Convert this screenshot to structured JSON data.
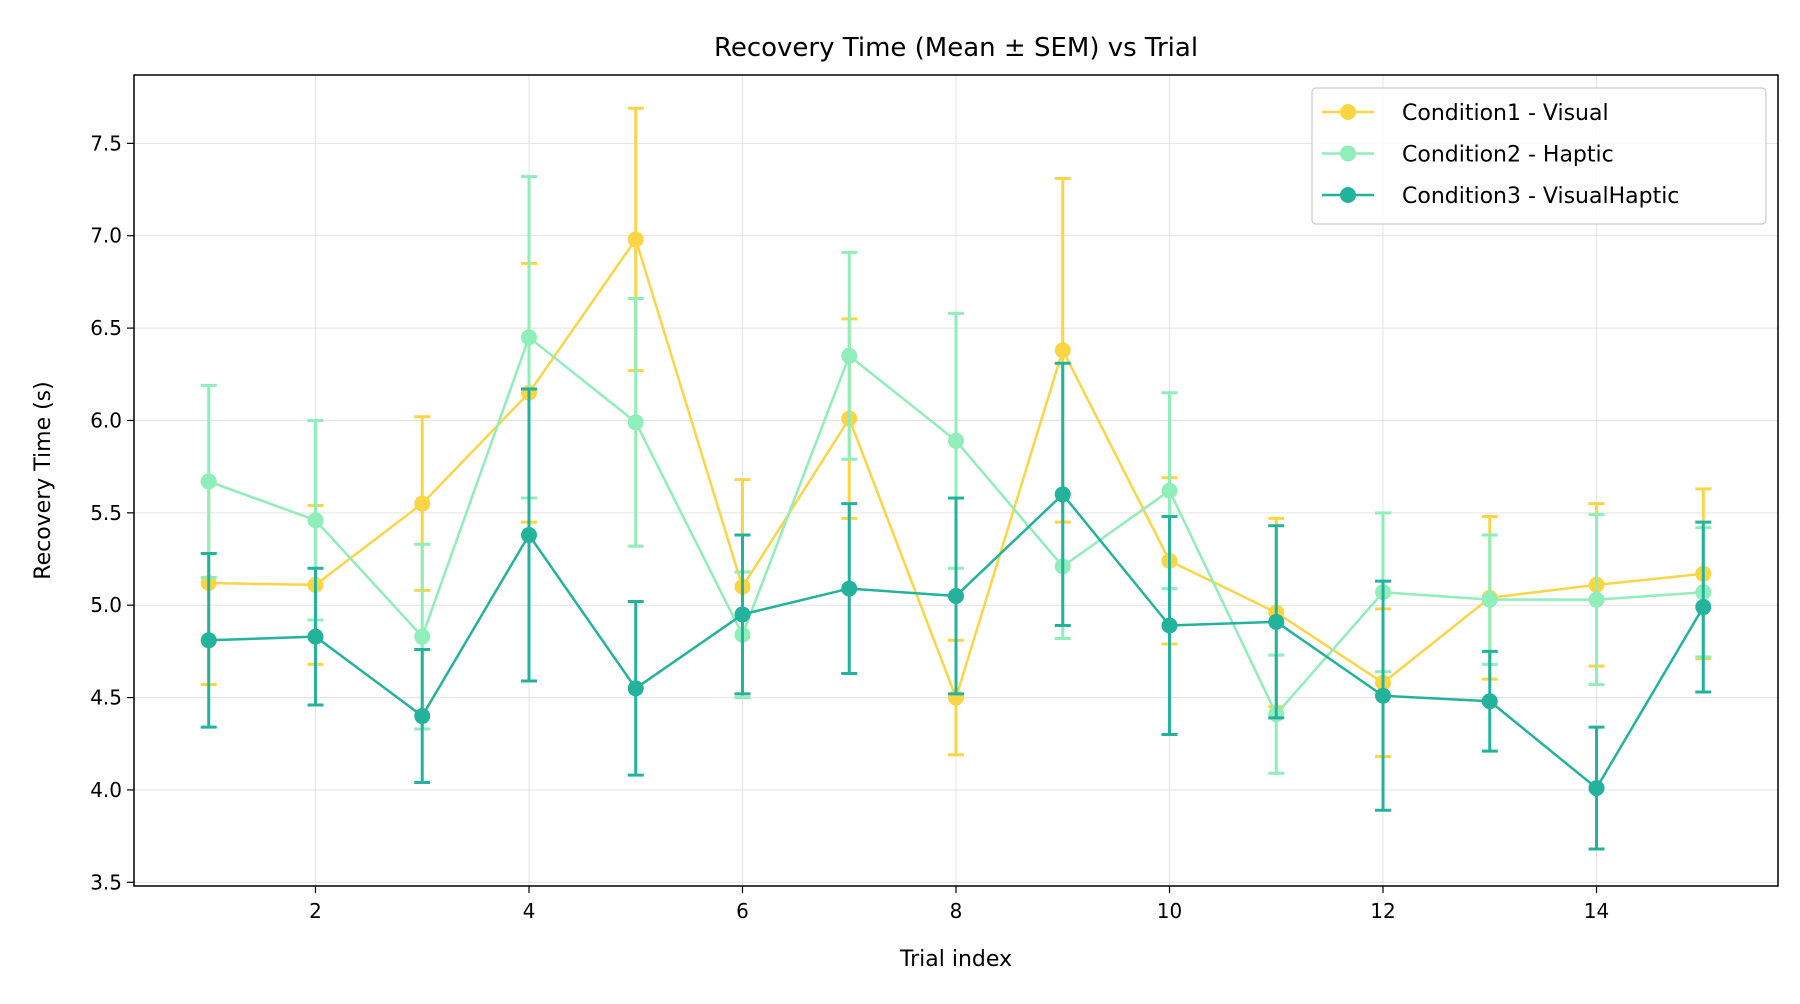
{
  "chart_data": {
    "type": "line",
    "title": "Recovery Time (Mean ± SEM) vs Trial",
    "xlabel": "Trial index",
    "ylabel": "Recovery Time (s)",
    "xlim": [
      0.3,
      15.7
    ],
    "ylim": [
      3.48,
      7.87
    ],
    "xticks": [
      2,
      4,
      6,
      8,
      10,
      12,
      14
    ],
    "yticks": [
      3.5,
      4.0,
      4.5,
      5.0,
      5.5,
      6.0,
      6.5,
      7.0,
      7.5
    ],
    "grid": true,
    "legend_position": "top-right",
    "x": [
      1,
      2,
      3,
      4,
      5,
      6,
      7,
      8,
      9,
      10,
      11,
      12,
      13,
      14,
      15
    ],
    "series": [
      {
        "name": "Condition1 - Visual",
        "color": "#fcd545",
        "values": [
          5.12,
          5.11,
          5.55,
          6.15,
          6.98,
          5.1,
          6.01,
          4.5,
          6.38,
          5.24,
          4.96,
          4.58,
          5.04,
          5.11,
          5.17
        ],
        "errors": [
          0.55,
          0.43,
          0.47,
          0.7,
          0.71,
          0.58,
          0.54,
          0.31,
          0.93,
          0.45,
          0.51,
          0.4,
          0.44,
          0.44,
          0.46
        ]
      },
      {
        "name": "Condition2 - Haptic",
        "color": "#8feeb9",
        "values": [
          5.67,
          5.46,
          4.83,
          6.45,
          5.99,
          4.84,
          6.35,
          5.89,
          5.21,
          5.62,
          4.41,
          5.07,
          5.03,
          5.03,
          5.07
        ],
        "errors": [
          0.52,
          0.54,
          0.5,
          0.87,
          0.67,
          0.34,
          0.56,
          0.69,
          0.39,
          0.53,
          0.32,
          0.43,
          0.35,
          0.46,
          0.35
        ]
      },
      {
        "name": "Condition3 - VisualHaptic",
        "color": "#23b39d",
        "values": [
          4.81,
          4.83,
          4.4,
          5.38,
          4.55,
          4.95,
          5.09,
          5.05,
          5.6,
          4.89,
          4.91,
          4.51,
          4.48,
          4.01,
          4.99
        ],
        "errors": [
          0.47,
          0.37,
          0.36,
          0.79,
          0.47,
          0.43,
          0.46,
          0.53,
          0.71,
          0.59,
          0.52,
          0.62,
          0.27,
          0.33,
          0.46
        ]
      }
    ]
  }
}
